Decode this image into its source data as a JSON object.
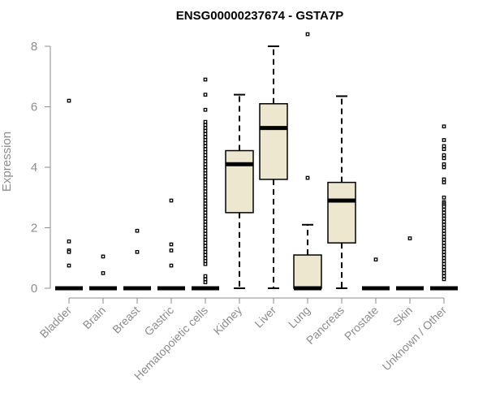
{
  "chart_data": {
    "type": "boxplot",
    "title": "ENSG00000237674 - GSTA7P",
    "xlabel": "",
    "ylabel": "Expression",
    "ylim": [
      0,
      8.4
    ],
    "yticks": [
      0,
      2,
      4,
      6,
      8
    ],
    "box_fill": "#ede7cf",
    "categories": [
      "Bladder",
      "Brain",
      "Breast",
      "Gastric",
      "Hematopoietic cells",
      "Kidney",
      "Liver",
      "Lung",
      "Pancreas",
      "Prostate",
      "Skin",
      "Unknown / Other"
    ],
    "boxes": [
      {
        "category": "Bladder",
        "min": 0,
        "q1": 0,
        "median": 0,
        "q3": 0,
        "max": 0,
        "outliers": [
          6.2,
          1.55,
          1.25,
          1.2,
          0.75
        ]
      },
      {
        "category": "Brain",
        "min": 0,
        "q1": 0,
        "median": 0,
        "q3": 0,
        "max": 0,
        "outliers": [
          1.05,
          0.5
        ]
      },
      {
        "category": "Breast",
        "min": 0,
        "q1": 0,
        "median": 0,
        "q3": 0,
        "max": 0,
        "outliers": [
          1.9,
          1.2
        ]
      },
      {
        "category": "Gastric",
        "min": 0,
        "q1": 0,
        "median": 0,
        "q3": 0,
        "max": 0,
        "outliers": [
          2.9,
          1.45,
          1.25,
          0.75
        ]
      },
      {
        "category": "Hematopoietic cells",
        "min": 0,
        "q1": 0,
        "median": 0,
        "q3": 0,
        "max": 0,
        "outliers": [
          6.9,
          6.4,
          5.9,
          5.5,
          5.4,
          5.3,
          5.2,
          5.1,
          5.0,
          4.9,
          4.8,
          4.7,
          4.6,
          4.5,
          4.4,
          4.3,
          4.2,
          4.1,
          4.0,
          3.9,
          3.8,
          3.7,
          3.6,
          3.5,
          3.4,
          3.3,
          3.2,
          3.1,
          3.0,
          2.9,
          2.8,
          2.7,
          2.6,
          2.5,
          2.4,
          2.3,
          2.2,
          2.1,
          2.0,
          1.9,
          1.8,
          1.7,
          1.6,
          1.5,
          1.4,
          1.3,
          1.2,
          1.1,
          1.0,
          0.9,
          0.8,
          0.4,
          0.3,
          0.2
        ]
      },
      {
        "category": "Kidney",
        "min": 0,
        "q1": 2.5,
        "median": 4.1,
        "q3": 4.55,
        "max": 6.4,
        "outliers": []
      },
      {
        "category": "Liver",
        "min": 0,
        "q1": 3.6,
        "median": 5.3,
        "q3": 6.1,
        "max": 8.0,
        "outliers": []
      },
      {
        "category": "Lung",
        "min": 0,
        "q1": 0,
        "median": 0,
        "q3": 1.1,
        "max": 2.1,
        "outliers": [
          8.4,
          3.65
        ]
      },
      {
        "category": "Pancreas",
        "min": 0,
        "q1": 1.5,
        "median": 2.9,
        "q3": 3.5,
        "max": 6.35,
        "outliers": []
      },
      {
        "category": "Prostate",
        "min": 0,
        "q1": 0,
        "median": 0,
        "q3": 0,
        "max": 0,
        "outliers": [
          0.95
        ]
      },
      {
        "category": "Skin",
        "min": 0,
        "q1": 0,
        "median": 0,
        "q3": 0,
        "max": 0,
        "outliers": [
          1.65
        ]
      },
      {
        "category": "Unknown / Other",
        "min": 0,
        "q1": 0,
        "median": 0,
        "q3": 0,
        "max": 0,
        "outliers": [
          5.35,
          4.9,
          4.7,
          4.6,
          4.4,
          4.3,
          4.1,
          4.0,
          3.6,
          3.5,
          3.0,
          2.85,
          2.8,
          2.75,
          2.7,
          2.6,
          2.5,
          2.4,
          2.3,
          2.2,
          2.1,
          2.0,
          1.9,
          1.8,
          1.7,
          1.6,
          1.5,
          1.4,
          1.3,
          1.2,
          1.1,
          1.0,
          0.9,
          0.8,
          0.7,
          0.6,
          0.5,
          0.4,
          0.3
        ]
      }
    ]
  }
}
